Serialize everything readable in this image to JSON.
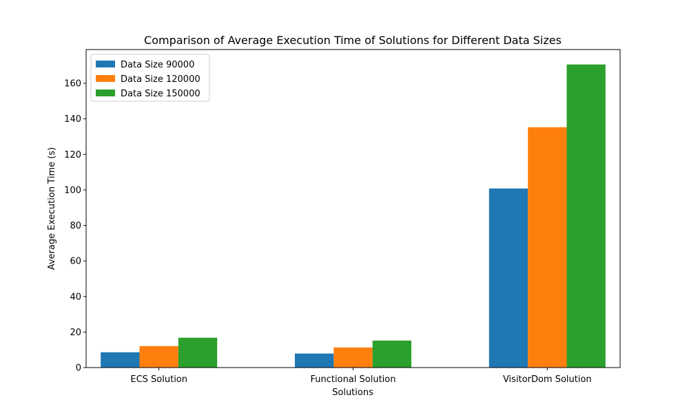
{
  "chart_data": {
    "type": "bar",
    "title": "Comparison of Average Execution Time of Solutions for Different Data Sizes",
    "xlabel": "Solutions",
    "ylabel": "Average Execution Time (s)",
    "categories": [
      "ECS Solution",
      "Functional Solution",
      "VisitorDom Solution"
    ],
    "series": [
      {
        "name": "Data Size 90000",
        "color": "#1f77b4",
        "values": [
          8.6,
          7.9,
          100.8
        ]
      },
      {
        "name": "Data Size 120000",
        "color": "#ff7f0e",
        "values": [
          12.1,
          11.3,
          135.3
        ]
      },
      {
        "name": "Data Size 150000",
        "color": "#2ca02c",
        "values": [
          16.8,
          15.2,
          170.6
        ]
      }
    ],
    "ylim": [
      0,
      179
    ],
    "yticks": [
      0,
      20,
      40,
      60,
      80,
      100,
      120,
      140,
      160
    ],
    "legend_position": "top-left",
    "grid": false
  }
}
